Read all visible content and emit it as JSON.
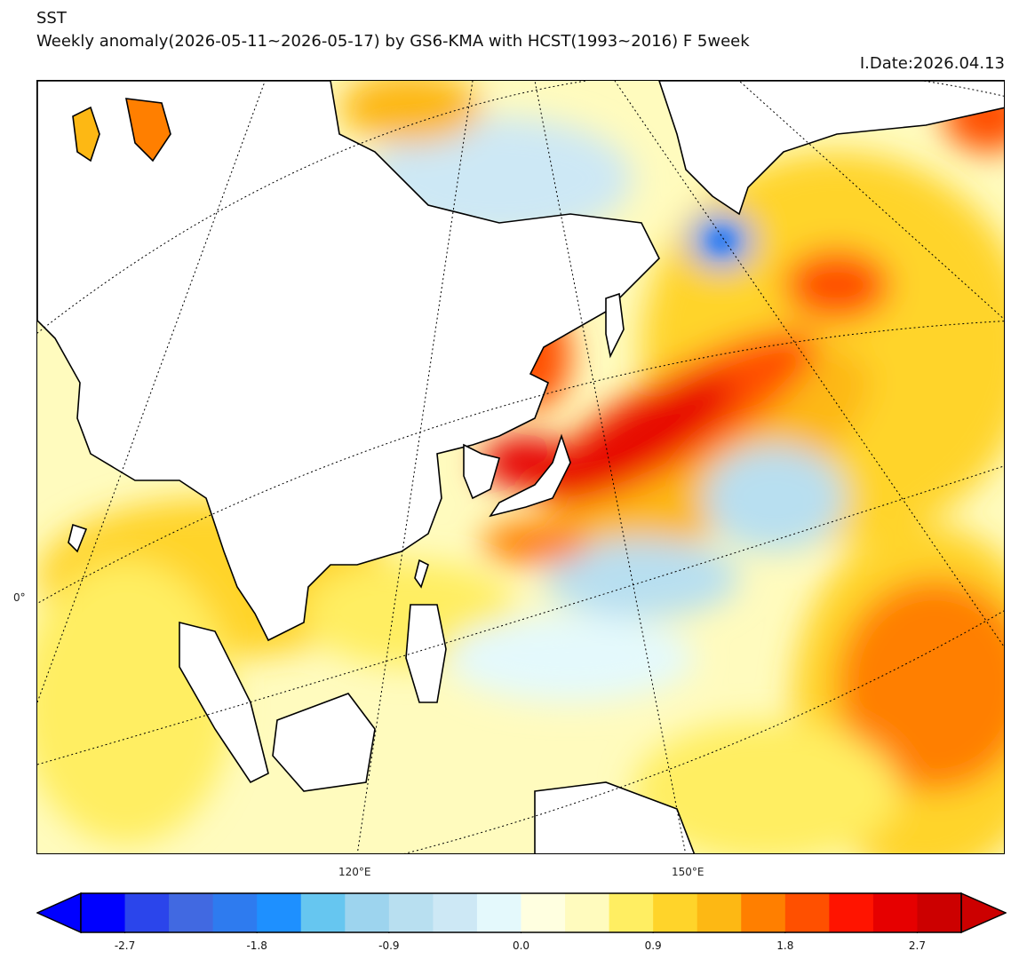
{
  "title": {
    "variable": "SST",
    "subtitle": "Weekly anomaly(2026-05-11~2026-05-17) by GS6-KMA with HCST(1993~2016) F 5week",
    "init_date": "I.Date:2026.04.13"
  },
  "axes": {
    "lat_label": "0°",
    "lon_labels": [
      "120°E",
      "150°E"
    ]
  },
  "colorbar": {
    "levels_min": -3.0,
    "levels_max": 3.0,
    "step": 0.3,
    "colors": [
      "#0000FF",
      "#2B45EB",
      "#4169E1",
      "#2E7BEF",
      "#1E90FF",
      "#66C6F0",
      "#9DD4EE",
      "#B8DFF0",
      "#CDE8F5",
      "#E4F9FC",
      "#FFFFE0",
      "#FFFBBE",
      "#FFEE62",
      "#FFD42A",
      "#FDB814",
      "#FF7F00",
      "#FF5000",
      "#FF1400",
      "#E60000",
      "#CC0000"
    ],
    "extend_low_color": "#0000FF",
    "extend_high_color": "#CC0000",
    "tick_labels": [
      "-2.7",
      "-1.8",
      "-0.9",
      "0.0",
      "0.9",
      "1.8",
      "2.7"
    ],
    "tick_values": [
      -2.7,
      -1.8,
      -0.9,
      0.0,
      0.9,
      1.8,
      2.7
    ]
  }
}
